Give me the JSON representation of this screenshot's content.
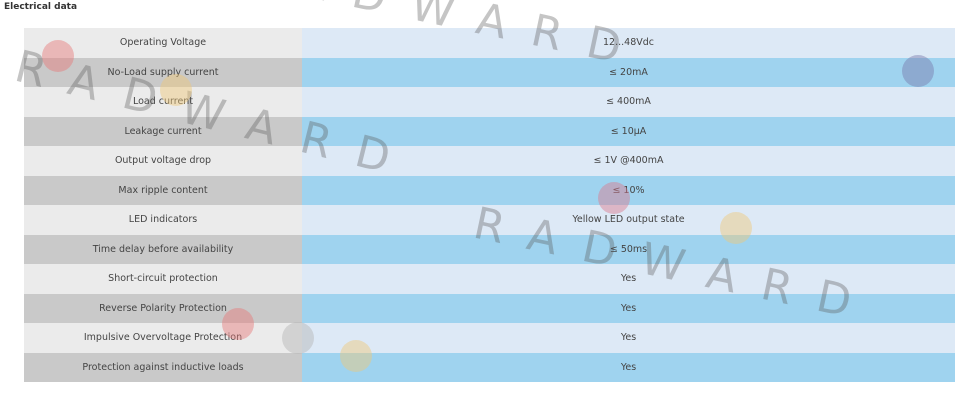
{
  "header": {
    "title": "Electrical data"
  },
  "table": {
    "rows": [
      [
        "Operating Voltage",
        "12...48Vdc"
      ],
      [
        "No-Load supply current",
        "≤ 20mA"
      ],
      [
        "Load current",
        "≤ 400mA"
      ],
      [
        "Leakage current",
        "≤ 10µA"
      ],
      [
        "Output voltage drop",
        "≤ 1V @400mA"
      ],
      [
        "Max ripple content",
        "≤ 10%"
      ],
      [
        "LED indicators",
        "Yellow LED output state"
      ],
      [
        "Time delay before availability",
        "≤ 50ms"
      ],
      [
        "Short-circuit protection",
        "Yes"
      ],
      [
        "Reverse Polarity Protection",
        "Yes"
      ],
      [
        "Impulsive Overvoltage Protection",
        "Yes"
      ],
      [
        "Protection against inductive loads",
        "Yes"
      ]
    ]
  },
  "watermark": "RADWARD"
}
